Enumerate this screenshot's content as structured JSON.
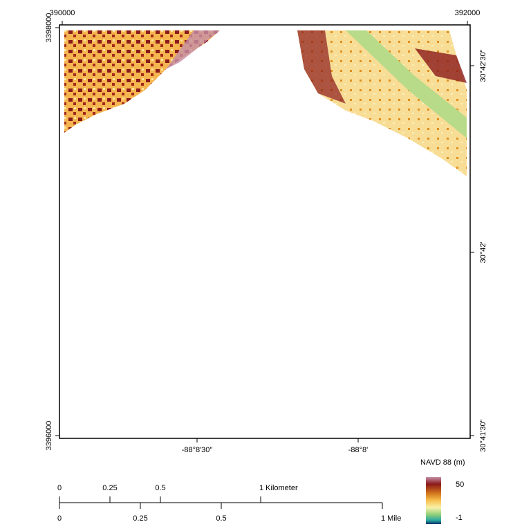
{
  "map": {
    "top_labels": [
      "390000",
      "392000"
    ],
    "left_labels": [
      "3398000",
      "3396000"
    ],
    "right_labels": [
      "30°42'30\"",
      "30°42'",
      "30°41'30\""
    ],
    "bottom_labels": [
      "-88°8'30\"",
      "-88°8'"
    ],
    "legend": {
      "title": "NAVD 88 (m)",
      "max_label": "50",
      "min_label": "-1"
    },
    "scale_km": [
      "0",
      "0.25",
      "0.5",
      "1 Kilometer"
    ],
    "scale_mile": [
      "0",
      "0.25",
      "0.5",
      "1 Mile"
    ]
  }
}
